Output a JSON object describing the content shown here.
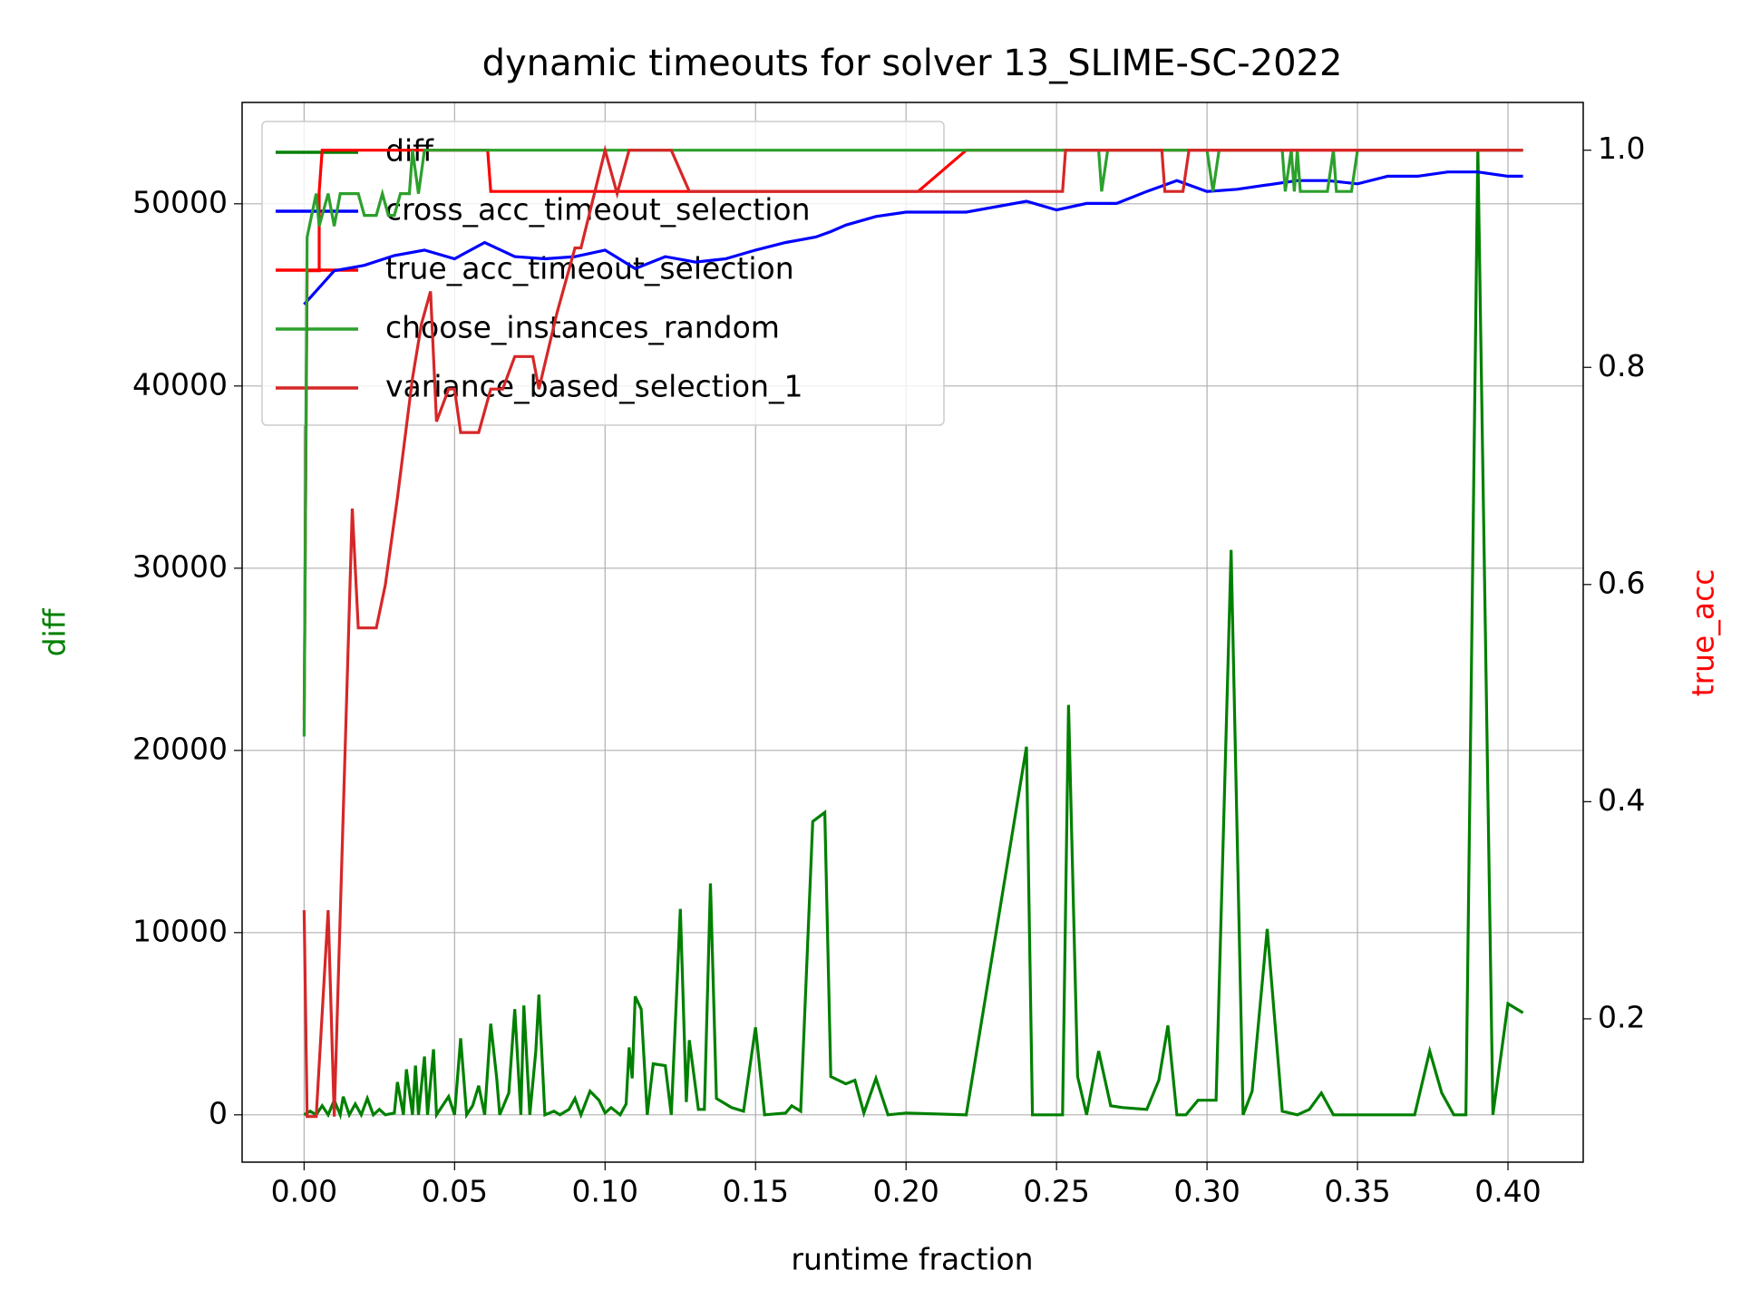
{
  "chart_data": {
    "type": "line",
    "title": "dynamic timeouts for solver 13_SLIME-SC-2022",
    "xlabel": "runtime fraction",
    "ylabel": "diff",
    "y2label": "true_acc",
    "ylabel_color": "#008000",
    "y2label_color": "#ff0000",
    "xlim": [
      -0.0206,
      0.425
    ],
    "xticks": [
      {
        "value": 0,
        "label": "0.00"
      },
      0.05,
      {
        "value": 0.1,
        "label": "0.10"
      },
      0.15,
      {
        "value": 0.2,
        "label": "0.20"
      },
      0.25,
      {
        "value": 0.3,
        "label": "0.30"
      },
      0.35,
      {
        "value": 0.4,
        "label": "0.40"
      }
    ],
    "ylim": [
      -2596,
      55562
    ],
    "yticks": [
      0,
      10000,
      20000,
      30000,
      40000,
      50000
    ],
    "y2lim": [
      0.068,
      1.044
    ],
    "y2ticks": [
      0.2,
      0.4,
      0.6,
      0.8,
      {
        "value": 1,
        "label": "1.0"
      }
    ],
    "grid": true,
    "legend": "upper left",
    "series": [
      {
        "name": "diff",
        "color": "#008000",
        "axis": "y",
        "x": [
          0,
          0.002,
          0.004,
          0.006,
          0.008,
          0.01,
          0.012,
          0.013,
          0.015,
          0.017,
          0.019,
          0.021,
          0.023,
          0.025,
          0.027,
          0.03,
          0.031,
          0.033,
          0.034,
          0.036,
          0.037,
          0.038,
          0.04,
          0.041,
          0.043,
          0.044,
          0.048,
          0.05,
          0.052,
          0.054,
          0.056,
          0.058,
          0.06,
          0.062,
          0.064,
          0.065,
          0.068,
          0.07,
          0.072,
          0.073,
          0.075,
          0.077,
          0.078,
          0.08,
          0.083,
          0.085,
          0.088,
          0.09,
          0.092,
          0.095,
          0.098,
          0.1,
          0.102,
          0.105,
          0.107,
          0.108,
          0.109,
          0.11,
          0.112,
          0.114,
          0.116,
          0.12,
          0.122,
          0.125,
          0.127,
          0.128,
          0.131,
          0.133,
          0.135,
          0.137,
          0.142,
          0.146,
          0.15,
          0.153,
          0.16,
          0.162,
          0.165,
          0.169,
          0.173,
          0.175,
          0.18,
          0.183,
          0.186,
          0.19,
          0.194,
          0.2,
          0.22,
          0.24,
          0.242,
          0.25,
          0.252,
          0.254,
          0.257,
          0.26,
          0.264,
          0.268,
          0.272,
          0.28,
          0.284,
          0.287,
          0.29,
          0.293,
          0.297,
          0.303,
          0.308,
          0.312,
          0.315,
          0.32,
          0.325,
          0.33,
          0.334,
          0.338,
          0.342,
          0.36,
          0.369,
          0.374,
          0.378,
          0.382,
          0.386,
          0.39,
          0.395,
          0.4,
          0.405
        ],
        "values": [
          0,
          200,
          0,
          500,
          0,
          800,
          0,
          1000,
          0,
          600,
          0,
          900,
          0,
          300,
          0,
          100,
          1800,
          0,
          2500,
          0,
          2700,
          0,
          3200,
          0,
          3600,
          0,
          1000,
          0,
          4200,
          0,
          500,
          1600,
          0,
          5000,
          2000,
          0,
          1200,
          5800,
          0,
          6000,
          0,
          3500,
          6600,
          0,
          200,
          0,
          300,
          900,
          0,
          1300,
          800,
          100,
          400,
          0,
          600,
          3700,
          2000,
          6500,
          5800,
          0,
          2800,
          2700,
          0,
          11300,
          700,
          4100,
          300,
          300,
          12700,
          900,
          400,
          200,
          4800,
          0,
          100,
          500,
          200,
          16100,
          16600,
          2100,
          1700,
          1900,
          100,
          2000,
          0,
          100,
          0,
          20200,
          0,
          0,
          0,
          22500,
          2100,
          0,
          3500,
          500,
          400,
          300,
          1900,
          4900,
          0,
          0,
          800,
          800,
          31000,
          0,
          1300,
          10200,
          200,
          0,
          300,
          1200,
          0,
          0,
          0,
          3500,
          1200,
          0,
          0,
          53000,
          0,
          6100,
          5600
        ]
      },
      {
        "name": "cross_acc_timeout_selection",
        "color": "#0000ff",
        "axis": "y2",
        "x": [
          0,
          0.01,
          0.02,
          0.03,
          0.04,
          0.05,
          0.06,
          0.07,
          0.08,
          0.09,
          0.1,
          0.11,
          0.12,
          0.13,
          0.14,
          0.15,
          0.16,
          0.17,
          0.175,
          0.18,
          0.19,
          0.2,
          0.22,
          0.24,
          0.25,
          0.26,
          0.27,
          0.28,
          0.29,
          0.3,
          0.31,
          0.33,
          0.34,
          0.35,
          0.36,
          0.37,
          0.38,
          0.39,
          0.4,
          0.405
        ],
        "values": [
          0.858,
          0.889,
          0.894,
          0.903,
          0.908,
          0.9,
          0.915,
          0.902,
          0.9,
          0.902,
          0.908,
          0.891,
          0.902,
          0.897,
          0.9,
          0.908,
          0.915,
          0.92,
          0.925,
          0.931,
          0.939,
          0.943,
          0.943,
          0.953,
          0.945,
          0.951,
          0.951,
          0.962,
          0.972,
          0.962,
          0.964,
          0.972,
          0.972,
          0.969,
          0.976,
          0.976,
          0.98,
          0.98,
          0.976,
          0.976
        ]
      },
      {
        "name": "true_acc_timeout_selection",
        "color": "#ff0000",
        "axis": "y2",
        "x": [
          0,
          0.001,
          0.005,
          0.005,
          0.006,
          0.061,
          0.062,
          0.204,
          0.22,
          0.405
        ],
        "values": [
          0.475,
          0.889,
          0.889,
          0.962,
          1,
          1,
          0.962,
          0.962,
          1,
          1
        ]
      },
      {
        "name": "choose_instances_random",
        "color": "#2ca02c",
        "axis": "y2",
        "x": [
          0,
          0.001,
          0.004,
          0.005,
          0.008,
          0.01,
          0.012,
          0.018,
          0.02,
          0.024,
          0.026,
          0.028,
          0.03,
          0.032,
          0.035,
          0.036,
          0.038,
          0.04,
          0.264,
          0.265,
          0.267,
          0.3,
          0.302,
          0.304,
          0.325,
          0.326,
          0.328,
          0.329,
          0.33,
          0.331,
          0.34,
          0.342,
          0.343,
          0.348,
          0.35,
          0.405
        ],
        "values": [
          0.46,
          0.92,
          0.96,
          0.93,
          0.96,
          0.93,
          0.96,
          0.96,
          0.94,
          0.94,
          0.96,
          0.94,
          0.94,
          0.96,
          0.96,
          1,
          0.96,
          1,
          1,
          0.962,
          1,
          1,
          0.962,
          1,
          1,
          0.962,
          1,
          0.962,
          1,
          0.962,
          0.962,
          1,
          0.962,
          0.962,
          1,
          1
        ]
      },
      {
        "name": "variance_based_selection_1",
        "color": "#d62728",
        "axis": "y2",
        "x": [
          0,
          0.001,
          0.004,
          0.008,
          0.01,
          0.016,
          0.018,
          0.024,
          0.027,
          0.031,
          0.036,
          0.039,
          0.042,
          0.044,
          0.048,
          0.05,
          0.052,
          0.058,
          0.062,
          0.066,
          0.07,
          0.076,
          0.078,
          0.084,
          0.09,
          0.092,
          0.1,
          0.104,
          0.108,
          0.122,
          0.128,
          0.252,
          0.253,
          0.285,
          0.286,
          0.292,
          0.294,
          0.405
        ],
        "values": [
          0.3,
          0.11,
          0.11,
          0.3,
          0.11,
          0.67,
          0.56,
          0.56,
          0.6,
          0.68,
          0.79,
          0.84,
          0.87,
          0.75,
          0.78,
          0.78,
          0.74,
          0.74,
          0.78,
          0.78,
          0.81,
          0.81,
          0.78,
          0.85,
          0.91,
          0.91,
          1,
          0.96,
          1,
          1,
          0.962,
          0.962,
          1,
          1,
          0.962,
          0.962,
          1,
          1
        ]
      }
    ]
  }
}
